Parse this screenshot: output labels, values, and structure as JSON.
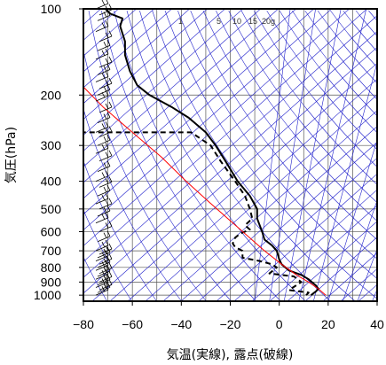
{
  "chart_data": {
    "type": "line",
    "title": "",
    "xlabel": "気温(実線), 露点(破線)",
    "ylabel": "気圧(hPa)",
    "xlim": [
      -80,
      40
    ],
    "ylim": [
      1050,
      100
    ],
    "y_scale": "log",
    "grid": true,
    "x_ticks": [
      "−80",
      "−60",
      "−40",
      "−20",
      "0",
      "20",
      "40"
    ],
    "y_ticks": [
      "100",
      "200",
      "300",
      "400",
      "500",
      "600",
      "700",
      "800",
      "900",
      "1000"
    ],
    "mixing_ratio_labels": [
      "1",
      "5",
      "10",
      "15",
      "20g"
    ],
    "series": [
      {
        "style": "solid",
        "color": "#000000",
        "points": [
          [
            13,
            1000
          ],
          [
            15,
            970
          ],
          [
            16,
            950
          ],
          [
            15,
            925
          ],
          [
            12,
            880
          ],
          [
            9,
            850
          ],
          [
            4,
            820
          ],
          [
            1,
            780
          ],
          [
            0,
            750
          ],
          [
            -1,
            700
          ],
          [
            -3,
            670
          ],
          [
            -6,
            640
          ],
          [
            -7,
            600
          ],
          [
            -9,
            540
          ],
          [
            -9,
            500
          ],
          [
            -12,
            450
          ],
          [
            -17,
            400
          ],
          [
            -22,
            340
          ],
          [
            -26,
            300
          ],
          [
            -30,
            270
          ],
          [
            -37,
            240
          ],
          [
            -44,
            220
          ],
          [
            -53,
            200
          ],
          [
            -58,
            185
          ],
          [
            -61,
            165
          ],
          [
            -63,
            145
          ],
          [
            -63,
            130
          ],
          [
            -65,
            115
          ],
          [
            -64,
            108
          ],
          [
            -69,
            104
          ],
          [
            -71,
            100
          ]
        ]
      },
      {
        "style": "dashed",
        "color": "#000000",
        "points": [
          [
            11,
            1000
          ],
          [
            12,
            980
          ],
          [
            4,
            960
          ],
          [
            9,
            900
          ],
          [
            6,
            860
          ],
          [
            -4,
            840
          ],
          [
            -1,
            800
          ],
          [
            -3,
            780
          ],
          [
            -8,
            760
          ],
          [
            -15,
            740
          ],
          [
            -15,
            700
          ],
          [
            -18,
            680
          ],
          [
            -19,
            660
          ],
          [
            -18,
            630
          ],
          [
            -16,
            610
          ],
          [
            -12,
            590
          ],
          [
            -14,
            570
          ],
          [
            -11,
            540
          ],
          [
            -12,
            500
          ],
          [
            -14,
            450
          ],
          [
            -18,
            400
          ],
          [
            -24,
            340
          ],
          [
            -28,
            300
          ],
          [
            -36,
            270
          ],
          [
            -80,
            270
          ]
        ]
      },
      {
        "style": "parcel",
        "color": "#ff0000",
        "points": [
          [
            19,
            1000
          ],
          [
            16,
            950
          ],
          [
            12,
            900
          ],
          [
            7,
            850
          ],
          [
            1,
            780
          ],
          [
            -6,
            700
          ],
          [
            -13,
            620
          ],
          [
            -21,
            540
          ],
          [
            -29,
            470
          ],
          [
            -38,
            400
          ],
          [
            -48,
            330
          ],
          [
            -60,
            270
          ],
          [
            -72,
            220
          ],
          [
            -82,
            180
          ]
        ]
      }
    ],
    "wind_pressures": [
      1000,
      980,
      960,
      940,
      920,
      900,
      880,
      860,
      840,
      820,
      800,
      780,
      760,
      740,
      720,
      700,
      650,
      600,
      560,
      530,
      500,
      480,
      450,
      420,
      400,
      370,
      340,
      320,
      300,
      280,
      270,
      250,
      230,
      210,
      200,
      190,
      180,
      170,
      160,
      150,
      140,
      130,
      120,
      110,
      105,
      100
    ],
    "colors": {
      "isotherm": "#2222cc",
      "dry_adiabat": "#2222cc",
      "mixing_ratio": "#2222cc",
      "parcel": "#ff0000",
      "profile": "#000000",
      "wind": "#000000"
    }
  }
}
